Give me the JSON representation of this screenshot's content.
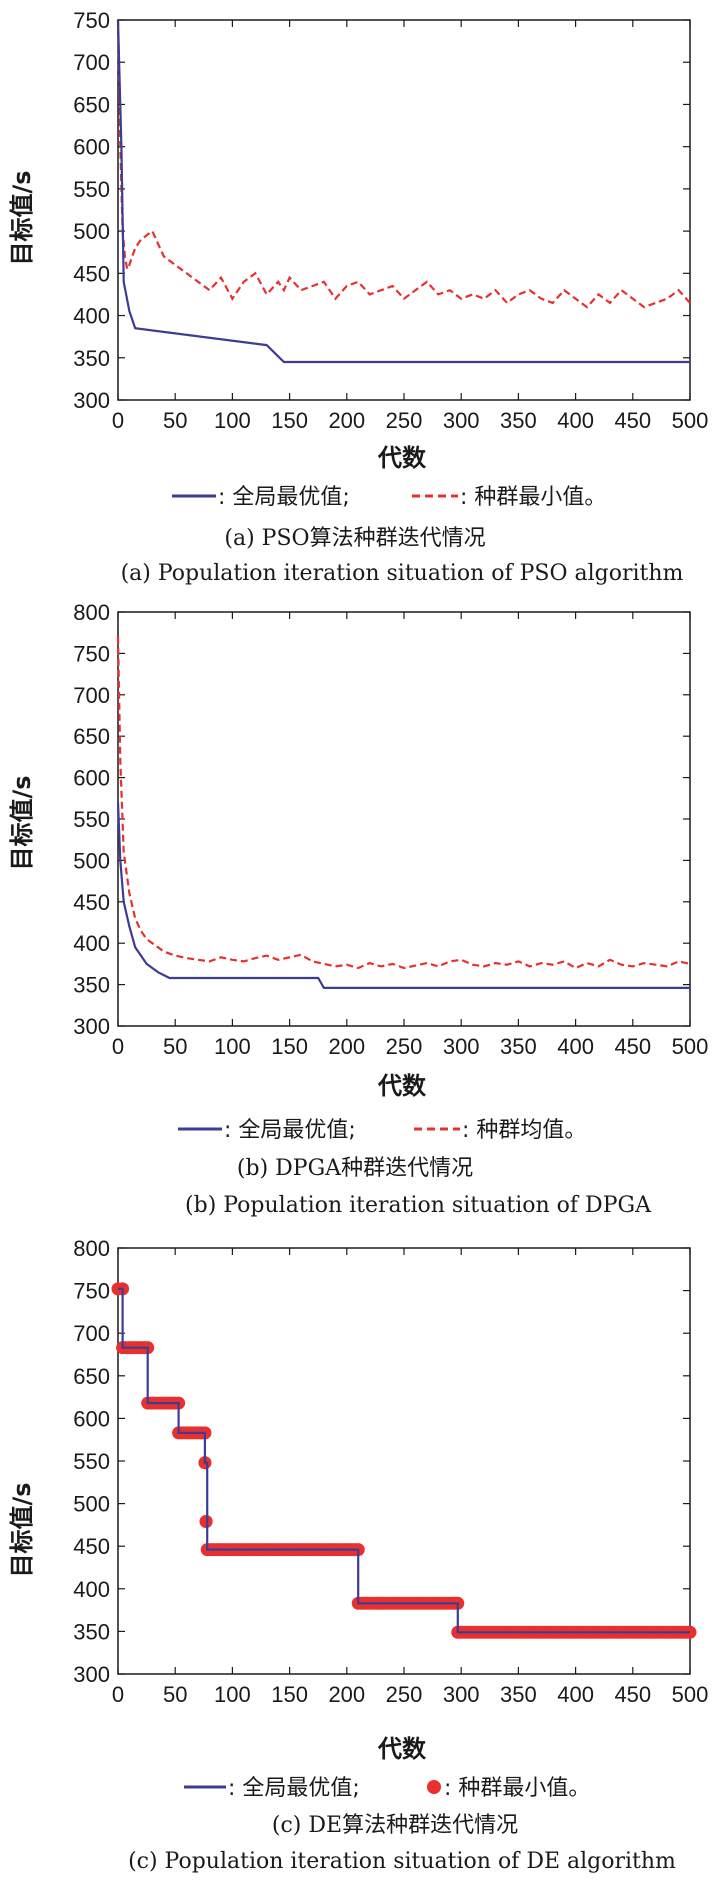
{
  "chart_data": [
    {
      "type": "line",
      "xlabel": "代数",
      "ylabel": "目标值/s",
      "xlim": [
        0,
        500
      ],
      "ylim": [
        300,
        750
      ],
      "xticks": [
        0,
        50,
        100,
        150,
        200,
        250,
        300,
        350,
        400,
        450,
        500
      ],
      "yticks": [
        300,
        350,
        400,
        450,
        500,
        550,
        600,
        650,
        700,
        750
      ],
      "legend": [
        {
          "marker": "—",
          "label": ": 全局最优值;"
        },
        {
          "marker": "---",
          "label": ": 种群最小值。"
        }
      ],
      "caption_cn": "(a) PSO算法种群迭代情况",
      "caption_en": "(a) Population iteration situation of PSO algorithm",
      "series": [
        {
          "name": "全局最优值",
          "color": "#3c3c96",
          "style": "solid",
          "x": [
            0,
            3,
            5,
            10,
            15,
            130,
            145,
            500
          ],
          "y": [
            750,
            600,
            440,
            405,
            385,
            365,
            345,
            345
          ]
        },
        {
          "name": "种群最小值",
          "color": "#e8302e",
          "style": "dashed",
          "x": [
            0,
            2,
            4,
            6,
            8,
            10,
            15,
            20,
            30,
            40,
            50,
            60,
            70,
            80,
            90,
            100,
            110,
            120,
            130,
            140,
            145,
            150,
            160,
            170,
            180,
            190,
            200,
            210,
            220,
            230,
            240,
            250,
            260,
            270,
            280,
            290,
            300,
            310,
            320,
            330,
            340,
            350,
            360,
            370,
            380,
            390,
            400,
            410,
            420,
            430,
            440,
            450,
            460,
            470,
            480,
            490,
            500
          ],
          "y": [
            750,
            600,
            500,
            470,
            455,
            460,
            480,
            490,
            500,
            470,
            460,
            450,
            440,
            430,
            445,
            420,
            440,
            450,
            425,
            440,
            430,
            445,
            430,
            435,
            440,
            420,
            435,
            440,
            425,
            430,
            435,
            420,
            430,
            440,
            425,
            430,
            420,
            425,
            420,
            430,
            415,
            425,
            430,
            420,
            415,
            430,
            420,
            410,
            425,
            415,
            430,
            420,
            410,
            415,
            420,
            430,
            415
          ]
        }
      ]
    },
    {
      "type": "line",
      "xlabel": "代数",
      "ylabel": "目标值/s",
      "xlim": [
        0,
        500
      ],
      "ylim": [
        300,
        800
      ],
      "xticks": [
        0,
        50,
        100,
        150,
        200,
        250,
        300,
        350,
        400,
        450,
        500
      ],
      "yticks": [
        300,
        350,
        400,
        450,
        500,
        550,
        600,
        650,
        700,
        750,
        800
      ],
      "legend": [
        {
          "marker": "—",
          "label": ": 全局最优值;"
        },
        {
          "marker": "---",
          "label": ": 种群均值。"
        }
      ],
      "caption_cn": "(b) DPGA种群迭代情况",
      "caption_en": "(b) Population iteration situation of DPGA",
      "series": [
        {
          "name": "全局最优值",
          "color": "#3c3c96",
          "style": "solid",
          "x": [
            0,
            2,
            5,
            10,
            15,
            25,
            35,
            45,
            175,
            180,
            500
          ],
          "y": [
            570,
            500,
            450,
            420,
            395,
            375,
            365,
            358,
            358,
            346,
            346
          ]
        },
        {
          "name": "种群均值",
          "color": "#e8302e",
          "style": "dashed",
          "x": [
            0,
            2,
            5,
            10,
            15,
            20,
            25,
            30,
            40,
            50,
            60,
            70,
            80,
            90,
            100,
            110,
            120,
            130,
            140,
            150,
            160,
            170,
            180,
            190,
            200,
            210,
            220,
            230,
            240,
            250,
            260,
            270,
            280,
            290,
            300,
            310,
            320,
            330,
            340,
            350,
            360,
            370,
            380,
            390,
            400,
            410,
            420,
            430,
            440,
            450,
            460,
            470,
            480,
            490,
            500
          ],
          "y": [
            770,
            620,
            510,
            460,
            430,
            415,
            405,
            400,
            390,
            385,
            382,
            380,
            378,
            383,
            380,
            378,
            382,
            385,
            380,
            383,
            386,
            378,
            375,
            372,
            374,
            370,
            376,
            372,
            375,
            370,
            373,
            376,
            372,
            378,
            380,
            374,
            372,
            376,
            374,
            378,
            372,
            376,
            374,
            378,
            370,
            376,
            372,
            380,
            374,
            372,
            376,
            374,
            372,
            378,
            375
          ]
        }
      ]
    },
    {
      "type": "line",
      "xlabel": "代数",
      "ylabel": "目标值/s",
      "xlim": [
        0,
        500
      ],
      "ylim": [
        300,
        800
      ],
      "xticks": [
        0,
        50,
        100,
        150,
        200,
        250,
        300,
        350,
        400,
        450,
        500
      ],
      "yticks": [
        300,
        350,
        400,
        450,
        500,
        550,
        600,
        650,
        700,
        750,
        800
      ],
      "legend": [
        {
          "marker": "—",
          "label": ": 全局最优值;"
        },
        {
          "marker": "●",
          "label": ": 种群最小值。"
        }
      ],
      "caption_cn": "(c) DE算法种群迭代情况",
      "caption_en": "(c) Population iteration situation of DE algorithm",
      "series": [
        {
          "name": "全局最优值",
          "color": "#3c3c96",
          "style": "solid",
          "x": [
            0,
            4,
            4,
            26,
            26,
            53,
            53,
            76,
            76,
            78,
            78,
            210,
            210,
            297,
            297,
            500
          ],
          "y": [
            752,
            752,
            683,
            683,
            618,
            618,
            583,
            583,
            548,
            548,
            446,
            446,
            383,
            383,
            349,
            349
          ]
        },
        {
          "name": "种群最小值",
          "color": "#e8302e",
          "style": "markers",
          "segments": [
            {
              "x0": 0,
              "x1": 4,
              "y": 752
            },
            {
              "x0": 4,
              "x1": 26,
              "y": 683
            },
            {
              "x0": 26,
              "x1": 53,
              "y": 618
            },
            {
              "x0": 53,
              "x1": 76,
              "y": 583
            },
            {
              "x0": 76,
              "x1": 76,
              "y": 548
            },
            {
              "x0": 77,
              "x1": 77,
              "y": 479
            },
            {
              "x0": 78,
              "x1": 210,
              "y": 446
            },
            {
              "x0": 210,
              "x1": 297,
              "y": 383
            },
            {
              "x0": 297,
              "x1": 500,
              "y": 349
            }
          ]
        }
      ]
    }
  ]
}
